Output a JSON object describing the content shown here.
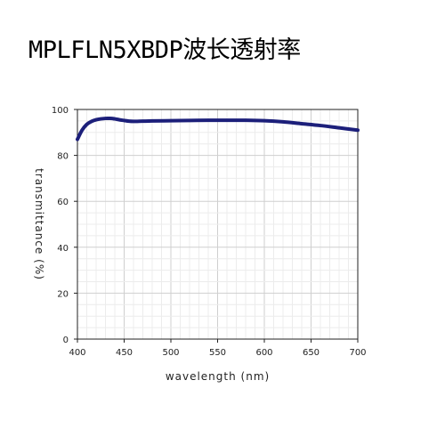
{
  "title": "MPLFLN5XBDP波长透射率",
  "chart_data": {
    "type": "line",
    "xlabel": "wavelength (nm)",
    "ylabel": "transmittance (%)",
    "xlim": [
      400,
      700
    ],
    "ylim": [
      0,
      100
    ],
    "x_ticks": [
      400,
      450,
      500,
      550,
      600,
      650,
      700
    ],
    "y_ticks": [
      0,
      20,
      40,
      60,
      80,
      100
    ],
    "grid": true,
    "line_color": "#1c1f7a",
    "series": [
      {
        "x": [
          400,
          405,
          410,
          415,
          420,
          425,
          430,
          435,
          440,
          445,
          450,
          455,
          460,
          470,
          480,
          500,
          520,
          540,
          560,
          580,
          600,
          620,
          640,
          660,
          680,
          700
        ],
        "y": [
          87,
          91,
          93.5,
          94.8,
          95.5,
          95.9,
          96.1,
          96.1,
          95.9,
          95.5,
          95.2,
          94.9,
          94.8,
          94.9,
          95.0,
          95.1,
          95.2,
          95.3,
          95.3,
          95.3,
          95.1,
          94.6,
          93.8,
          93.0,
          92.0,
          91.0
        ]
      }
    ]
  }
}
